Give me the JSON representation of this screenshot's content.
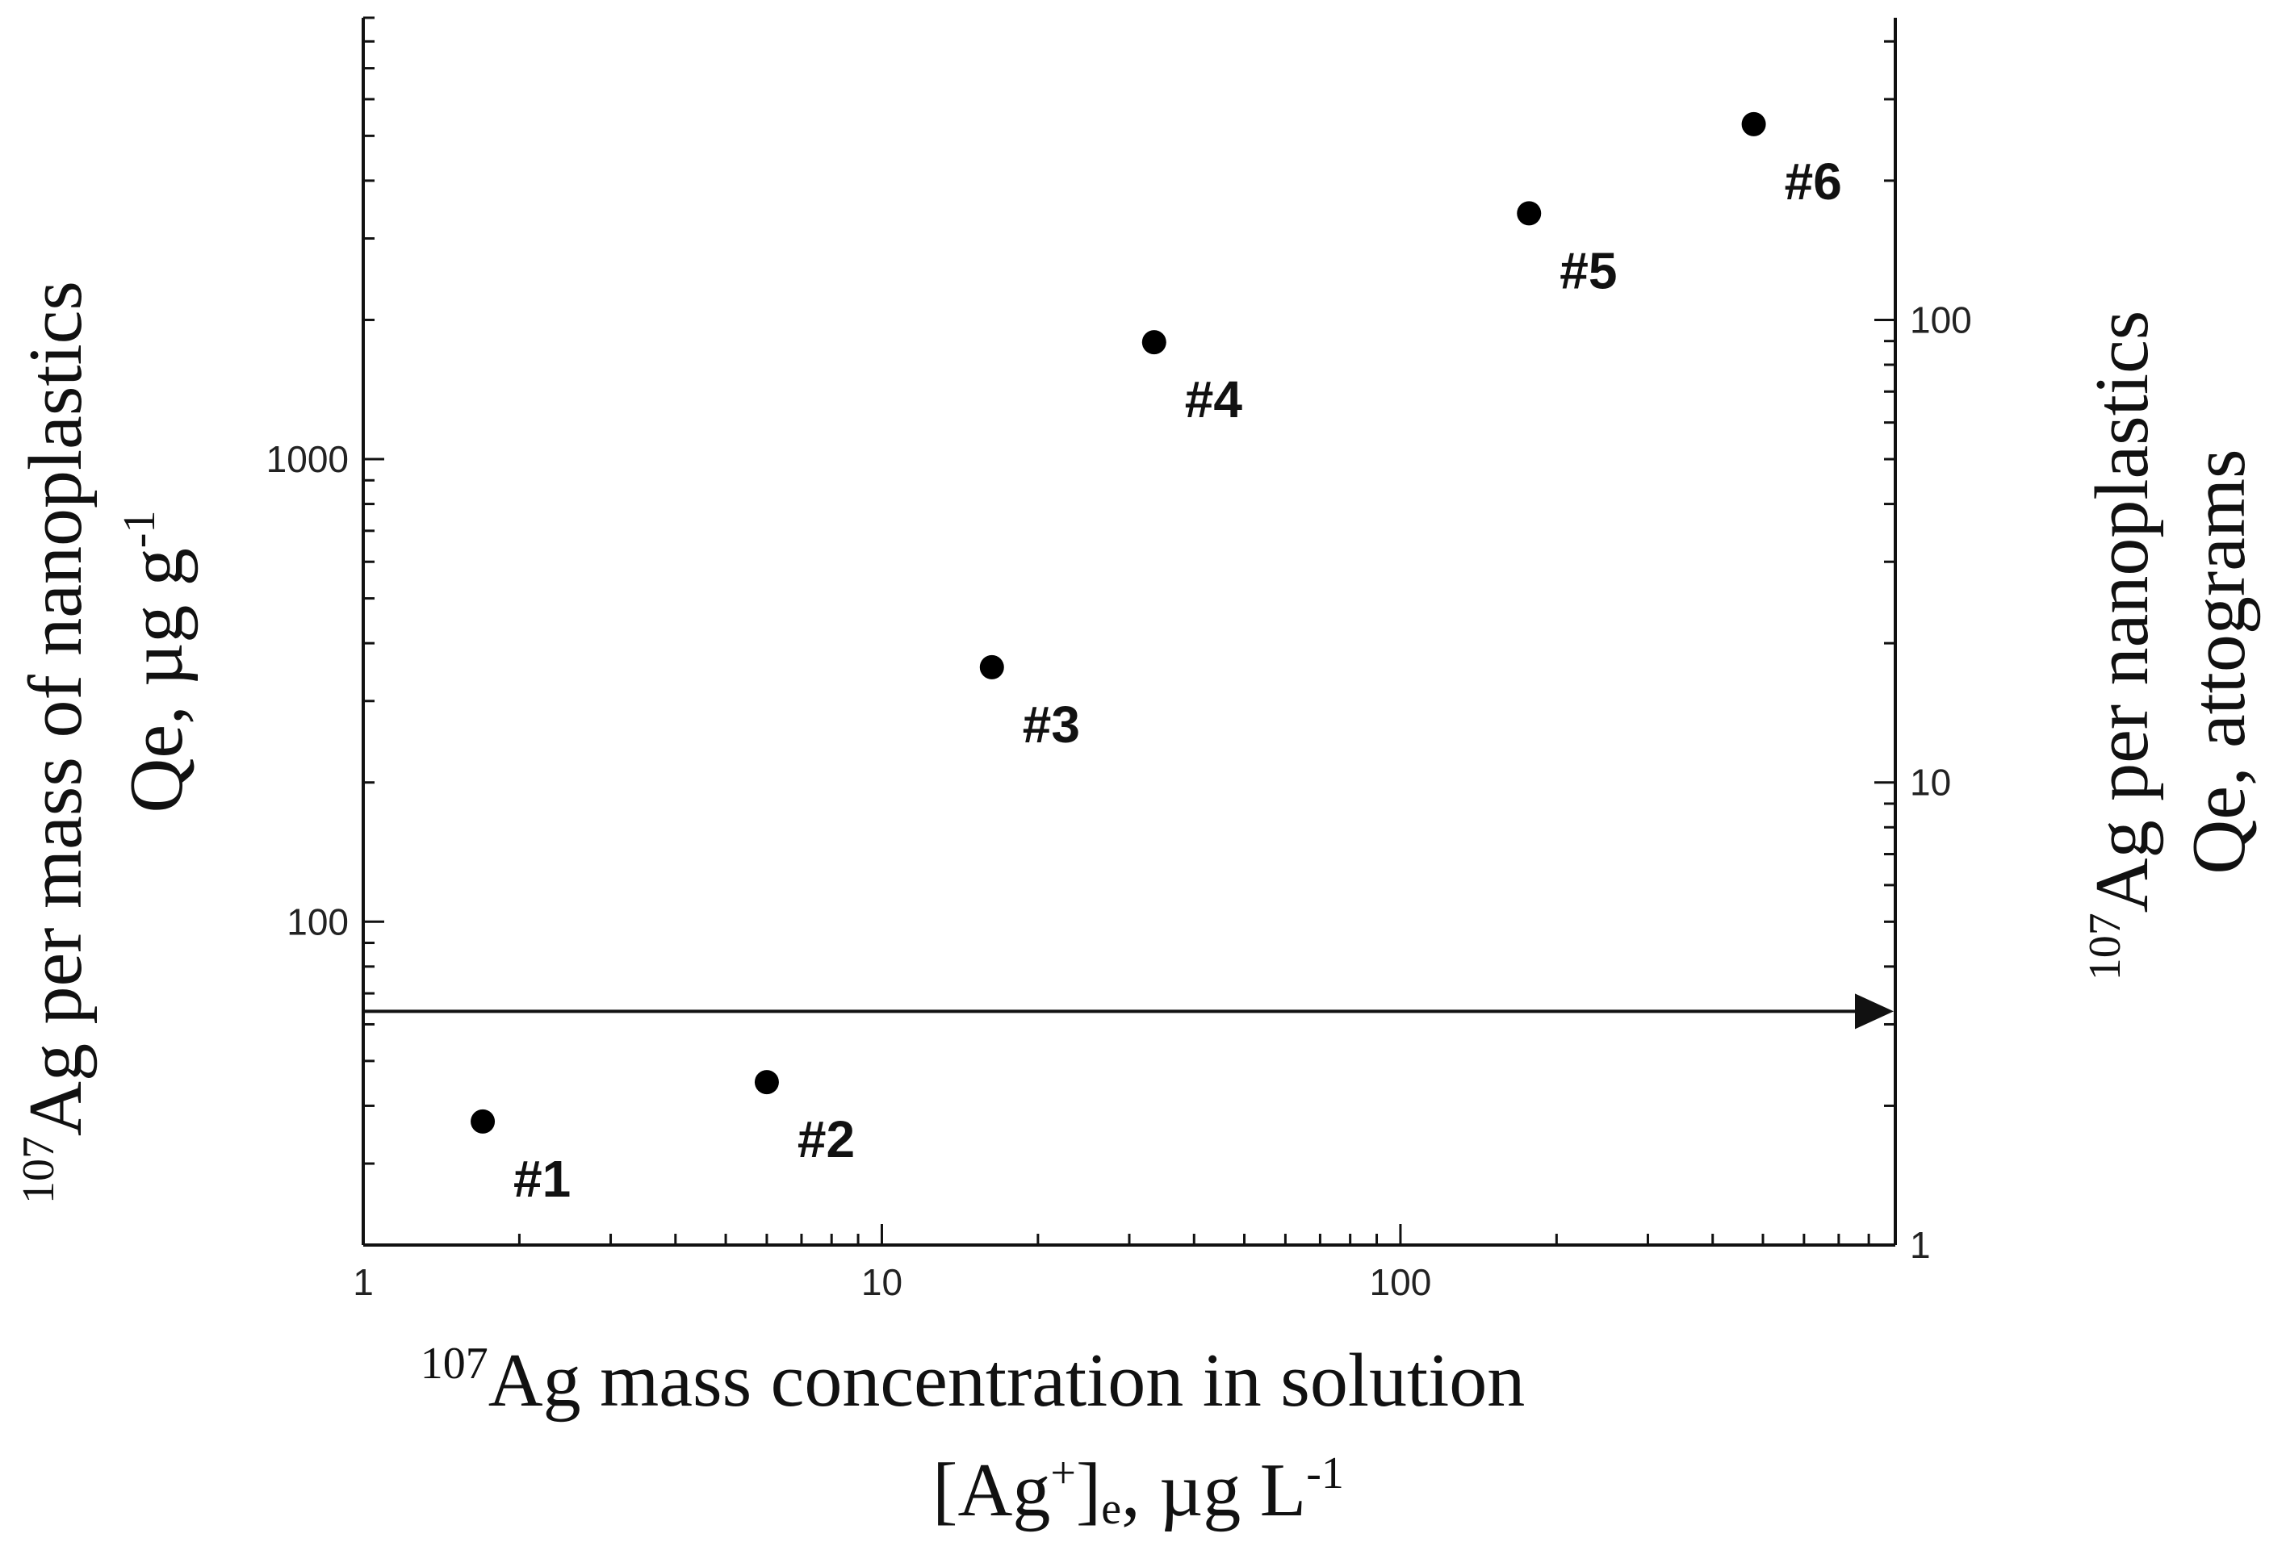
{
  "chart_data": {
    "type": "scatter",
    "x_scale": "log",
    "y_scale": "log",
    "y2_scale": "log",
    "xlim": [
      1,
      900
    ],
    "ylim": [
      20,
      9000
    ],
    "y2lim": [
      1,
      450
    ],
    "xticks": [
      {
        "value": 1,
        "label": "1"
      },
      {
        "value": 10,
        "label": "10"
      },
      {
        "value": 100,
        "label": "100"
      }
    ],
    "yticks": [
      {
        "value": 100,
        "label": "100"
      },
      {
        "value": 1000,
        "label": "1000"
      }
    ],
    "y2ticks": [
      {
        "value": 1,
        "label": "1"
      },
      {
        "value": 10,
        "label": "10"
      },
      {
        "value": 100,
        "label": "100"
      }
    ],
    "xlabel": {
      "line1_sup": "107",
      "line1": "Ag mass concentration in solution",
      "line2_a": "[Ag",
      "line2_sup": "+",
      "line2_b": "]",
      "line2_sub": "e",
      "line2_c": ", µg L",
      "line2_sup2": "-1"
    },
    "ylabel": {
      "line1_sup": "107",
      "line1": "Ag per mass of nanoplastics",
      "line2": "Qe, µg g",
      "line2_sup": "-1"
    },
    "y2label": {
      "line1_sup": "107",
      "line1": "Ag per nanoplastics",
      "line2": "Qe, attograms"
    },
    "points": [
      {
        "label": "#1",
        "x": 1.7,
        "y": 37
      },
      {
        "label": "#2",
        "x": 6.0,
        "y": 45
      },
      {
        "label": "#3",
        "x": 16.3,
        "y": 355
      },
      {
        "label": "#4",
        "x": 33.5,
        "y": 1790
      },
      {
        "label": "#5",
        "x": 177,
        "y": 3400
      },
      {
        "label": "#6",
        "x": 480,
        "y": 5300
      }
    ],
    "reference_line": {
      "y2": 3.2,
      "direction": "right"
    },
    "grid": false,
    "legend": "none"
  }
}
